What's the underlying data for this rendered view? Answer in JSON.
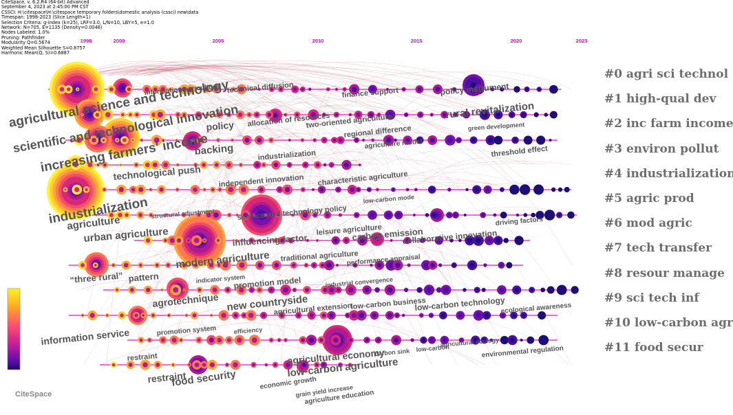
{
  "meta": [
    "CiteSpace, v. 6.2.R4 (64-bit) Advanced",
    "September 4, 2023 at 2:45:00 PM CST",
    "CSSCI: H:\\citespace\\H:\\citespace temporary folders\\domestic analysis (cssci) new\\data",
    "Timespan: 1998-2023 (Slice Length=1)",
    "Selection Criteria: g-index (k=25), LRF=3.0, L/N=10, LBY=5, e=1.0",
    "Network: N=705, E=1135 (Density=0.0046)",
    "Nodes Labeled: 1.0%",
    "Pruning: Pathfinder",
    "Modularity Q=0.5674",
    "Weighted Mean Silhouette S=0.8757",
    "Harmonic Mean(Q, S)=0.6887"
  ],
  "years": [
    "1998",
    "2000",
    "2005",
    "2010",
    "2015",
    "2020",
    "2023"
  ],
  "clusters": [
    "#0 agri sci technol",
    "#1 high-qual dev",
    "#2 inc farm income",
    "#3 environ pollut",
    "#4 industrialization",
    "#5 agric prod",
    "#6 mod agric",
    "#7 tech transfer",
    "#8 resour manage",
    "#9 sci tech inf",
    "#10 low-carbon agric",
    "#11 food secur"
  ],
  "colors": {
    "year_label": "#e000e0",
    "line": "#ff33cc",
    "cluster_text": "#6e6e6e",
    "term_text": "#555555"
  },
  "terms": [
    "agricultural science and technology",
    "information agriculture",
    "technical diffusion",
    "finance support",
    "policy instrument",
    "rural revitalization",
    "scientific and technological innovation",
    "policy",
    "allocation of resources",
    "two-oriented agriculture",
    "regional difference",
    "green development",
    "increasing farmers' income",
    "backing",
    "industrialization",
    "agriculture model",
    "threshold effect",
    "technological push",
    "independent innovation",
    "characteristic agriculture",
    "industrialization",
    "agriculture",
    "structural adjustment",
    "science and technology policy",
    "low-carbon mode",
    "urban agriculture",
    "influencing factor",
    "leisure agriculture",
    "carbon emission",
    "collaborative innovation",
    "driving factors",
    "modern agriculture",
    "traditional agriculture",
    "performance appraisal",
    "“three rural”",
    "pattern",
    "indicator system",
    "promotion model",
    "industrial convergence",
    "agrotechnique",
    "new countryside",
    "agricultural extension",
    "low-carbon business",
    "low-carbon technology",
    "ecological awareness",
    "information service",
    "promotion system",
    "efficiency",
    "restraint",
    "agricultural economy",
    "low-carbon agriculture",
    "carbon sink",
    "low-carbon",
    "agricultural ecology",
    "environmental regulation",
    "restraint",
    "food security",
    "economic growth",
    "grain yield increase",
    "agriculture education"
  ],
  "logo": "CiteSpace"
}
